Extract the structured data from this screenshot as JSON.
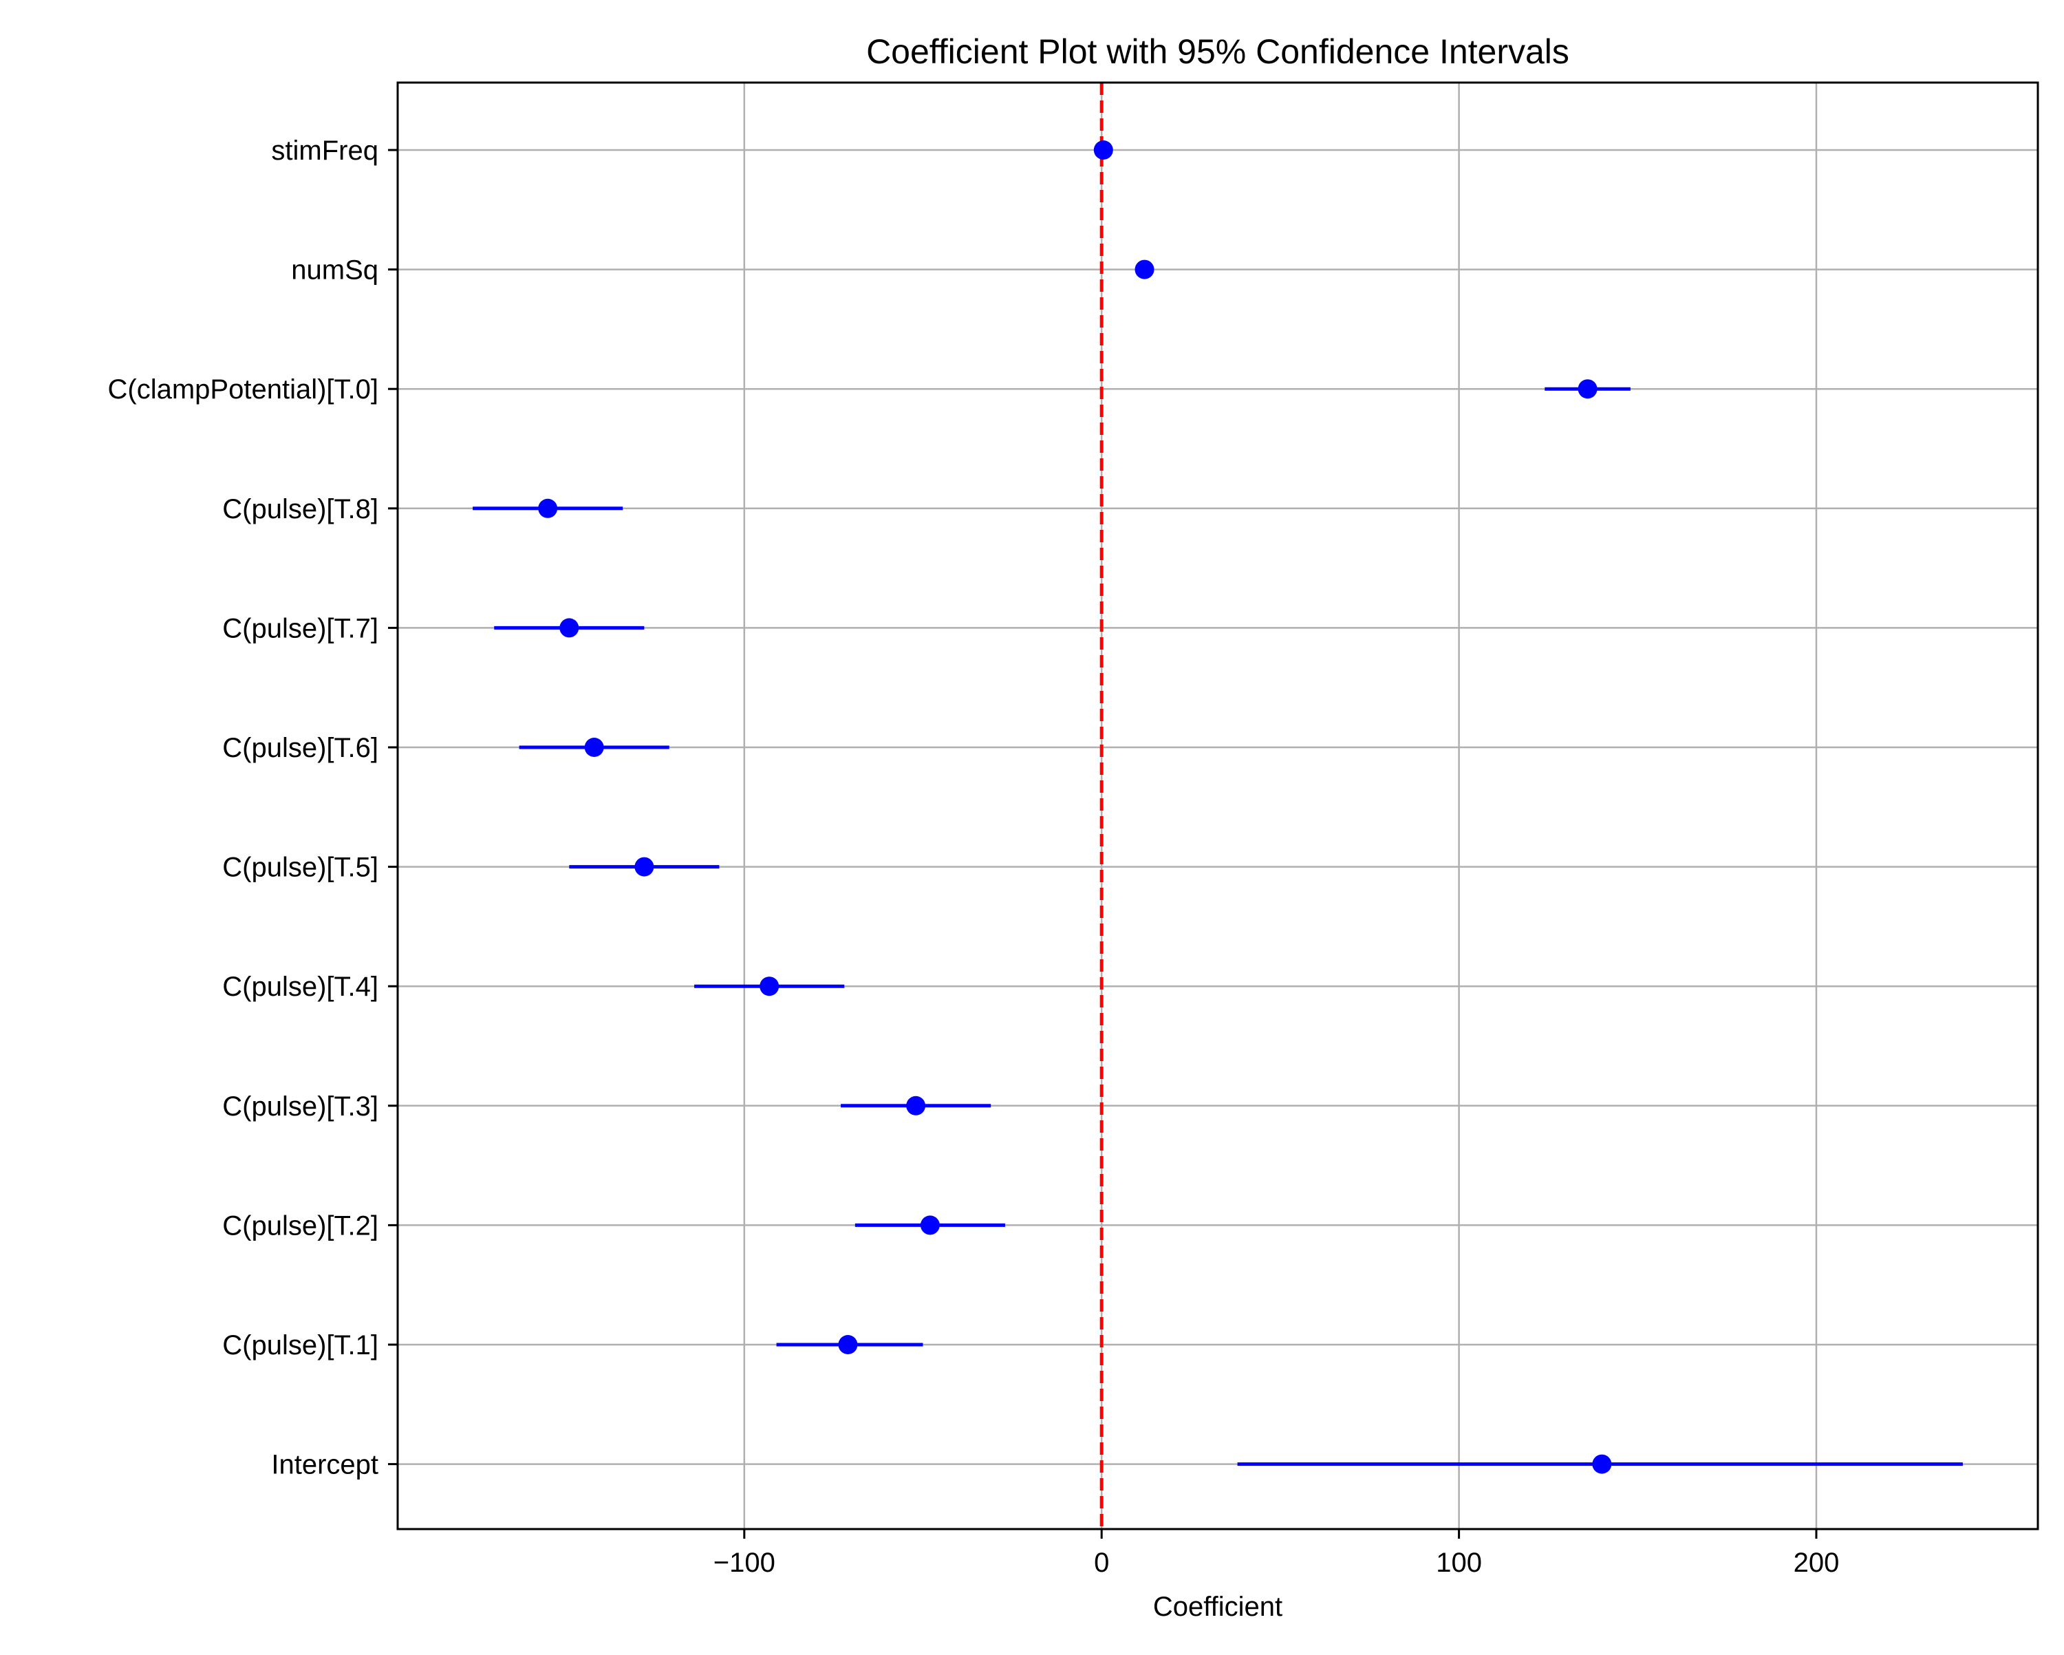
{
  "chart_data": {
    "type": "scatter",
    "subtype": "coefficient-plot",
    "title": "Coefficient Plot with 95% Confidence Intervals",
    "xlabel": "Coefficient",
    "ylabel": "",
    "xlim": [
      -197,
      262
    ],
    "x_ticks": [
      -100,
      0,
      100,
      200
    ],
    "x_tick_labels": [
      "−100",
      "0",
      "100",
      "200"
    ],
    "grid": true,
    "legend": "none",
    "reference_line": {
      "x": 0,
      "style": "dashed",
      "color": "#ff0000"
    },
    "colors": {
      "points": "#0000ff",
      "ci": "#0000ff",
      "grid": "#b0b0b0",
      "axes": "#000000"
    },
    "categories": [
      "stimFreq",
      "numSq",
      "C(clampPotential)[T.0]",
      "C(pulse)[T.8]",
      "C(pulse)[T.7]",
      "C(pulse)[T.6]",
      "C(pulse)[T.5]",
      "C(pulse)[T.4]",
      "C(pulse)[T.3]",
      "C(pulse)[T.2]",
      "C(pulse)[T.1]",
      "Intercept"
    ],
    "coefficients": [
      0.5,
      12,
      136,
      -155,
      -149,
      -142,
      -128,
      -93,
      -52,
      -48,
      -71,
      140
    ],
    "ci_lower": [
      0.0,
      11,
      124,
      -176,
      -170,
      -163,
      -149,
      -114,
      -73,
      -69,
      -91,
      38
    ],
    "ci_upper": [
      1.0,
      13,
      148,
      -134,
      -128,
      -121,
      -107,
      -72,
      -31,
      -27,
      -50,
      241
    ]
  }
}
